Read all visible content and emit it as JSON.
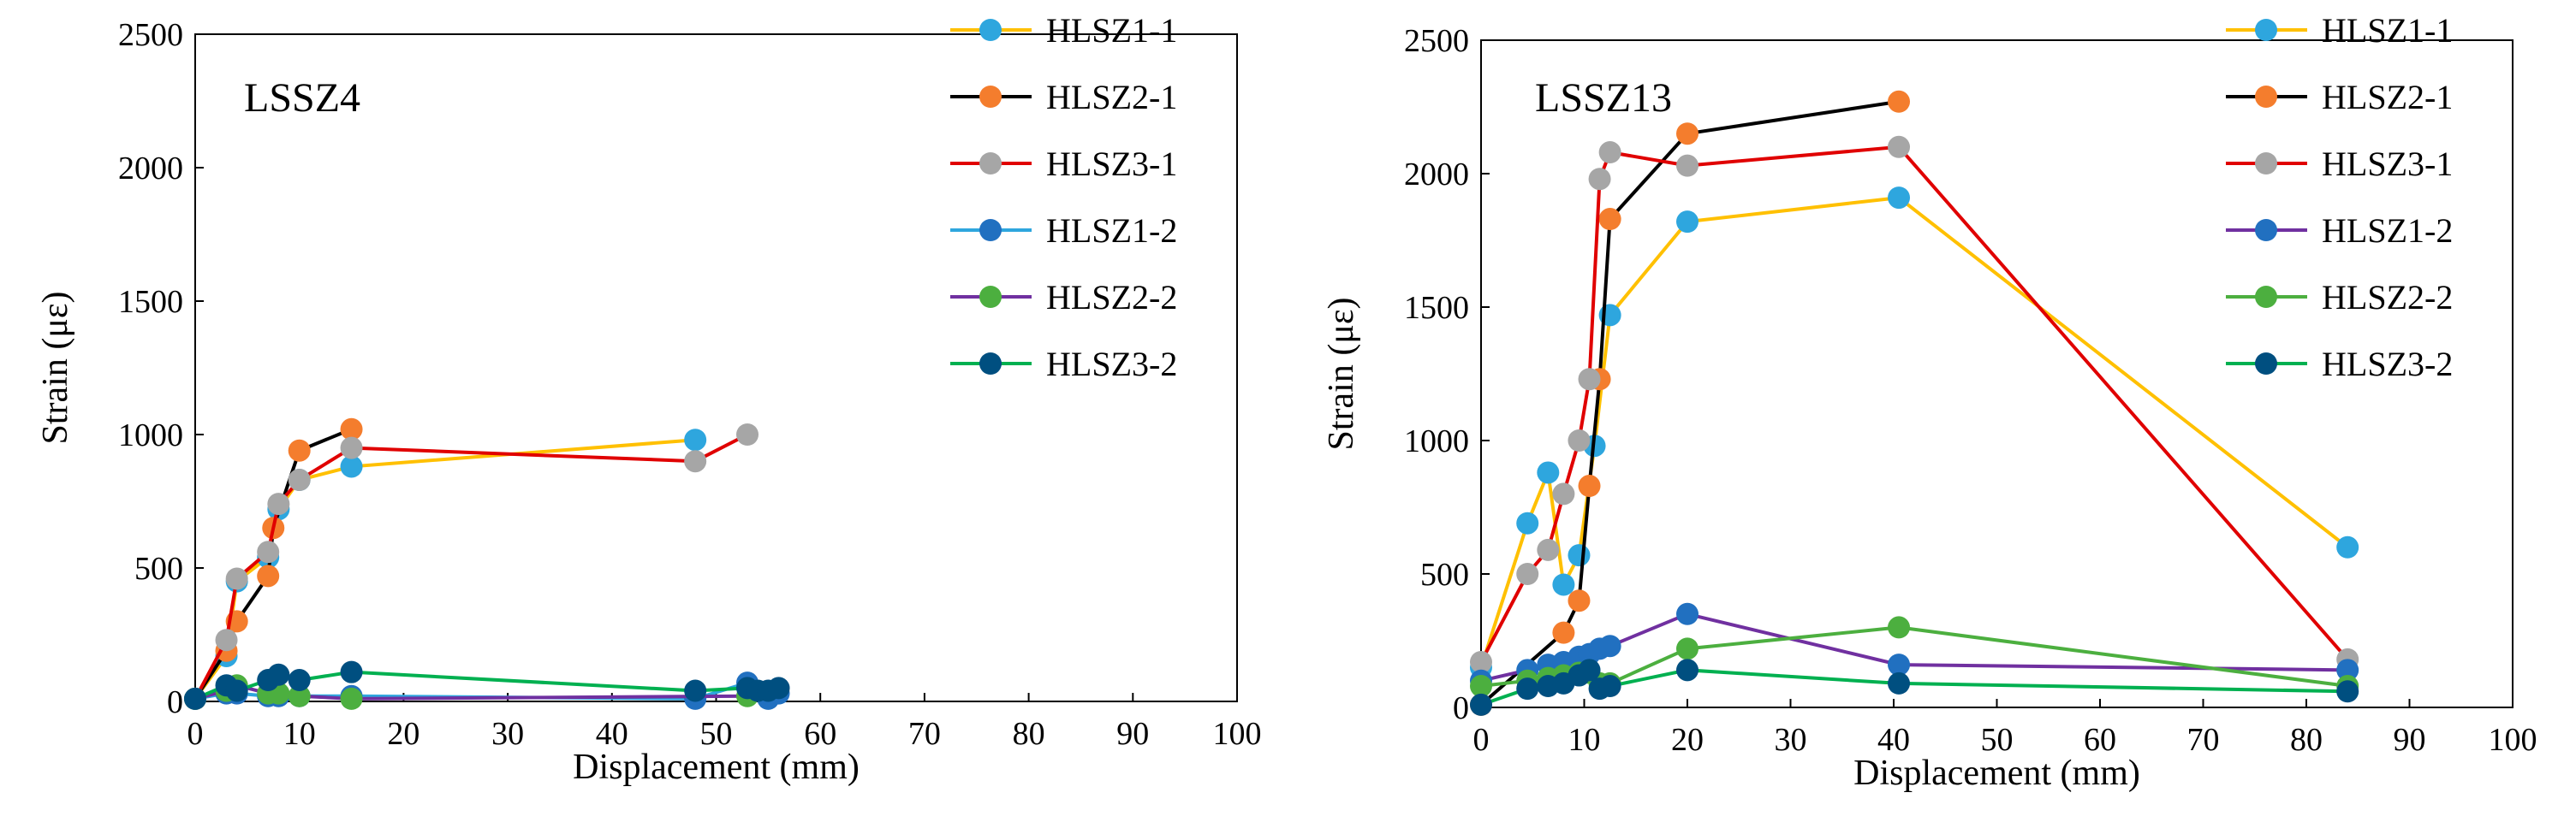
{
  "chart_data": [
    {
      "type": "line",
      "title": "LSSZ4",
      "xlabel": "Displacement (mm)",
      "ylabel": "Strain (με)",
      "xlim": [
        0,
        100
      ],
      "ylim": [
        0,
        2500
      ],
      "xticks": [
        "0",
        "10",
        "20",
        "30",
        "40",
        "50",
        "60",
        "70",
        "80",
        "90",
        "100"
      ],
      "yticks": [
        "0",
        "500",
        "1000",
        "1500",
        "2000",
        "2500"
      ],
      "series": [
        {
          "name": "HLSZ1-1",
          "line_color": "#ffc000",
          "marker_color": "#2ea6de",
          "x": [
            0,
            3,
            4,
            7,
            8,
            10,
            15,
            48
          ],
          "y": [
            10,
            170,
            450,
            540,
            720,
            830,
            880,
            980
          ]
        },
        {
          "name": "HLSZ2-1",
          "line_color": "#000000",
          "marker_color": "#f47d2d",
          "x": [
            0,
            3,
            4,
            7,
            7.5,
            10,
            15
          ],
          "y": [
            10,
            190,
            300,
            470,
            650,
            940,
            1020
          ]
        },
        {
          "name": "HLSZ3-1",
          "line_color": "#e00000",
          "marker_color": "#a6a6a6",
          "x": [
            0,
            3,
            4,
            7,
            8,
            10,
            15,
            48,
            53
          ],
          "y": [
            10,
            230,
            460,
            560,
            740,
            830,
            950,
            900,
            1000
          ]
        },
        {
          "name": "HLSZ1-2",
          "line_color": "#2ea6de",
          "marker_color": "#2170c0",
          "x": [
            0,
            3,
            4,
            7,
            8,
            10,
            15,
            48,
            53,
            55,
            56
          ],
          "y": [
            10,
            30,
            30,
            20,
            20,
            20,
            20,
            10,
            70,
            10,
            30
          ]
        },
        {
          "name": "HLSZ2-2",
          "line_color": "#7030a0",
          "marker_color": "#4caf3f",
          "x": [
            0,
            3,
            4,
            7,
            8,
            10,
            15,
            53
          ],
          "y": [
            10,
            40,
            60,
            30,
            30,
            20,
            10,
            20
          ]
        },
        {
          "name": "HLSZ3-2",
          "line_color": "#00b050",
          "marker_color": "#004f80",
          "x": [
            0,
            3,
            4,
            7,
            8,
            10,
            15,
            48,
            53,
            54,
            55,
            56
          ],
          "y": [
            10,
            60,
            40,
            80,
            100,
            80,
            110,
            40,
            50,
            40,
            40,
            50
          ]
        }
      ]
    },
    {
      "type": "line",
      "title": "LSSZ13",
      "xlabel": "Displacement (mm)",
      "ylabel": "Strain (με)",
      "xlim": [
        0,
        100
      ],
      "ylim": [
        0,
        2500
      ],
      "xticks": [
        "0",
        "10",
        "20",
        "30",
        "40",
        "50",
        "60",
        "70",
        "80",
        "90",
        "100"
      ],
      "yticks": [
        "0",
        "500",
        "1000",
        "1500",
        "2000",
        "2500"
      ],
      "series": [
        {
          "name": "HLSZ1-1",
          "line_color": "#ffc000",
          "marker_color": "#2ea6de",
          "x": [
            0,
            4.5,
            6.5,
            8,
            9.5,
            11,
            12.5,
            20,
            40.5,
            84
          ],
          "y": [
            150,
            690,
            880,
            460,
            570,
            980,
            1470,
            1820,
            1910,
            600
          ]
        },
        {
          "name": "HLSZ2-1",
          "line_color": "#000000",
          "marker_color": "#f47d2d",
          "x": [
            0,
            8,
            9.5,
            10.5,
            11.5,
            12.5,
            20,
            40.5
          ],
          "y": [
            10,
            280,
            400,
            830,
            1230,
            1830,
            2150,
            2270
          ]
        },
        {
          "name": "HLSZ3-1",
          "line_color": "#e00000",
          "marker_color": "#a6a6a6",
          "x": [
            0,
            4.5,
            6.5,
            8,
            9.5,
            10.5,
            11.5,
            12.5,
            20,
            40.5,
            84
          ],
          "y": [
            170,
            500,
            590,
            800,
            1000,
            1230,
            1980,
            2080,
            2030,
            2100,
            180
          ]
        },
        {
          "name": "HLSZ1-2",
          "line_color": "#7030a0",
          "marker_color": "#2170c0",
          "x": [
            0,
            4.5,
            6.5,
            8,
            9.5,
            10.5,
            11.5,
            12.5,
            20,
            40.5,
            84
          ],
          "y": [
            100,
            140,
            160,
            170,
            190,
            200,
            220,
            230,
            350,
            160,
            140
          ]
        },
        {
          "name": "HLSZ2-2",
          "line_color": "#4caf3f",
          "marker_color": "#4caf3f",
          "x": [
            0,
            4.5,
            6.5,
            8,
            9.5,
            10.5,
            11.5,
            12.5,
            20,
            40.5,
            84
          ],
          "y": [
            80,
            100,
            110,
            120,
            130,
            130,
            90,
            90,
            220,
            300,
            80
          ]
        },
        {
          "name": "HLSZ3-2",
          "line_color": "#00b050",
          "marker_color": "#004f80",
          "x": [
            0,
            4.5,
            6.5,
            8,
            9.5,
            10.5,
            11.5,
            12.5,
            20,
            40.5,
            84
          ],
          "y": [
            10,
            70,
            80,
            90,
            120,
            140,
            70,
            80,
            140,
            90,
            60
          ]
        }
      ]
    }
  ]
}
